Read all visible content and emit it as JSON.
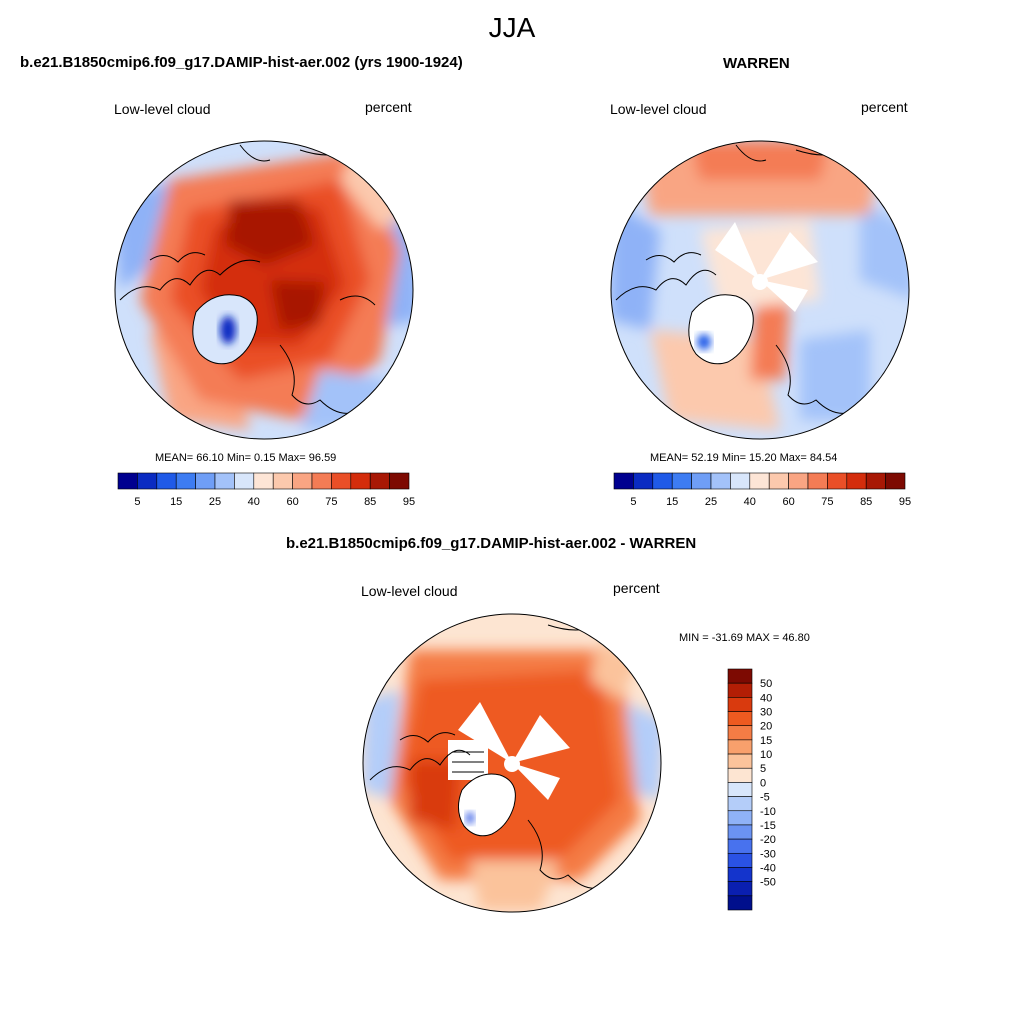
{
  "figure": {
    "season": "JJA"
  },
  "panels": [
    {
      "id": "model",
      "title": "b.e21.B1850cmip6.f09_g17.DAMIP-hist-aer.002 (yrs 1900-1924)",
      "left_label": "Low-level cloud",
      "right_label": "percent",
      "stats": "MEAN=  66.10  Min=   0.15  Max=  96.59"
    },
    {
      "id": "obs",
      "title": "WARREN",
      "left_label": "Low-level cloud",
      "right_label": "percent",
      "stats": "MEAN=  52.19  Min=  15.20  Max=  84.54"
    },
    {
      "id": "diff",
      "title": "b.e21.B1850cmip6.f09_g17.DAMIP-hist-aer.002 - WARREN",
      "left_label": "Low-level cloud",
      "right_label": "percent",
      "stats": "MIN = -31.69 MAX =  46.80"
    }
  ],
  "colorbar_main": {
    "colors": [
      "#00008f",
      "#0a2bc2",
      "#1f5ae8",
      "#3d7cf2",
      "#6f9ef6",
      "#a3c2f9",
      "#d8e6fb",
      "#fde5d6",
      "#fcc9ad",
      "#f9a583",
      "#f47c55",
      "#ea4f27",
      "#d42d0c",
      "#a81805",
      "#7d0a02"
    ],
    "tick_labels": [
      "5",
      "15",
      "25",
      "40",
      "60",
      "75",
      "85",
      "95"
    ]
  },
  "colorbar_diff": {
    "colors_top_to_bottom": [
      "#7d0a02",
      "#b31e05",
      "#d93a0e",
      "#ee5a20",
      "#f47c45",
      "#f8a06c",
      "#fbc39b",
      "#fde5d2",
      "#d8e6fb",
      "#b4cdf9",
      "#8fb2f7",
      "#6b93f3",
      "#4872ee",
      "#2a52e4",
      "#1434cc",
      "#0a1fb0",
      "#000f8c"
    ],
    "tick_labels": [
      "50",
      "40",
      "30",
      "20",
      "15",
      "10",
      "5",
      "0",
      "-5",
      "-10",
      "-15",
      "-20",
      "-30",
      "-40",
      "-50"
    ]
  }
}
